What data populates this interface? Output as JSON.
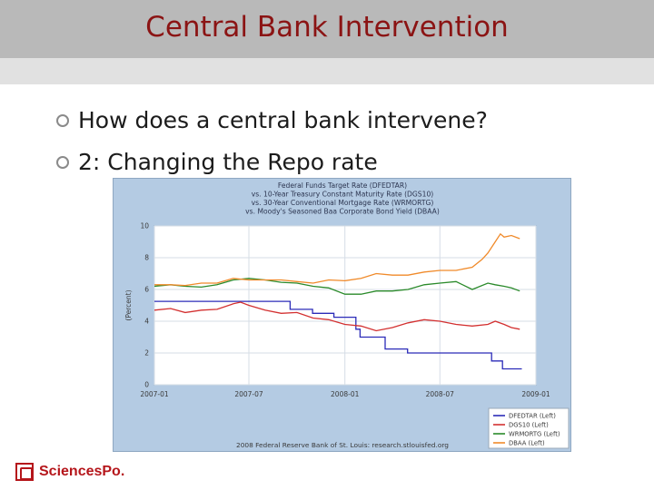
{
  "slide": {
    "title": "Central Bank Intervention",
    "bullets": [
      "How does a central bank intervene?",
      "2: Changing the Repo rate"
    ],
    "logo_text": "SciencesPo."
  },
  "colors": {
    "title": "#8b1414",
    "header_bg": "#b9b9b9",
    "band_bg": "#e1e1e1",
    "chart_bg": "#b4cbe3",
    "plot_bg": "#ffffff",
    "brand": "#b5161b"
  },
  "chart_data": {
    "type": "line",
    "title_lines": [
      "Federal Funds Target Rate (DFEDTAR)",
      "vs.  10-Year Treasury Constant Maturity Rate (DGS10)",
      "vs.  30-Year Conventional Mortgage Rate (WRMORTG)",
      "vs.  Moody's Seasoned Baa Corporate Bond Yield (DBAA)"
    ],
    "ylabel": "(Percent)",
    "ylim": [
      0,
      10
    ],
    "y_ticks": [
      "0",
      "2",
      "4",
      "6",
      "8",
      "10"
    ],
    "xlim": [
      "2007-01",
      "2009-01"
    ],
    "x_ticks": [
      "2007-01",
      "2007-07",
      "2008-01",
      "2008-07",
      "2009-01"
    ],
    "grid": true,
    "legend_position": "bottom-right",
    "footer": "2008 Federal Reserve Bank of St. Louis: research.stlouisfed.org",
    "series": [
      {
        "name": "DFEDTAR (Left)",
        "color": "#2b2bb8",
        "step": true,
        "points": [
          [
            "2007-01-01",
            5.25
          ],
          [
            "2007-09-18",
            4.75
          ],
          [
            "2007-10-31",
            4.5
          ],
          [
            "2007-12-11",
            4.25
          ],
          [
            "2008-01-22",
            3.5
          ],
          [
            "2008-01-30",
            3.0
          ],
          [
            "2008-03-18",
            2.25
          ],
          [
            "2008-04-30",
            2.0
          ],
          [
            "2008-10-08",
            1.5
          ],
          [
            "2008-10-29",
            1.0
          ],
          [
            "2008-12-05",
            1.0
          ]
        ]
      },
      {
        "name": "DGS10 (Left)",
        "color": "#d33030",
        "step": false,
        "points": [
          [
            "2007-01-01",
            4.7
          ],
          [
            "2007-02-01",
            4.8
          ],
          [
            "2007-03-01",
            4.55
          ],
          [
            "2007-04-01",
            4.7
          ],
          [
            "2007-05-01",
            4.75
          ],
          [
            "2007-06-01",
            5.1
          ],
          [
            "2007-06-15",
            5.2
          ],
          [
            "2007-07-01",
            5.0
          ],
          [
            "2007-08-01",
            4.7
          ],
          [
            "2007-09-01",
            4.5
          ],
          [
            "2007-10-01",
            4.55
          ],
          [
            "2007-11-01",
            4.2
          ],
          [
            "2007-12-01",
            4.1
          ],
          [
            "2008-01-01",
            3.8
          ],
          [
            "2008-02-01",
            3.7
          ],
          [
            "2008-03-01",
            3.4
          ],
          [
            "2008-04-01",
            3.6
          ],
          [
            "2008-05-01",
            3.9
          ],
          [
            "2008-06-01",
            4.1
          ],
          [
            "2008-07-01",
            4.0
          ],
          [
            "2008-08-01",
            3.8
          ],
          [
            "2008-09-01",
            3.7
          ],
          [
            "2008-10-01",
            3.8
          ],
          [
            "2008-10-15",
            4.0
          ],
          [
            "2008-11-01",
            3.8
          ],
          [
            "2008-11-15",
            3.6
          ],
          [
            "2008-12-01",
            3.5
          ]
        ]
      },
      {
        "name": "WRMORTG (Left)",
        "color": "#2a8a2a",
        "step": false,
        "points": [
          [
            "2007-01-01",
            6.2
          ],
          [
            "2007-02-01",
            6.3
          ],
          [
            "2007-03-01",
            6.2
          ],
          [
            "2007-04-01",
            6.15
          ],
          [
            "2007-05-01",
            6.3
          ],
          [
            "2007-06-01",
            6.6
          ],
          [
            "2007-07-01",
            6.7
          ],
          [
            "2007-08-01",
            6.6
          ],
          [
            "2007-09-01",
            6.45
          ],
          [
            "2007-10-01",
            6.4
          ],
          [
            "2007-11-01",
            6.2
          ],
          [
            "2007-12-01",
            6.1
          ],
          [
            "2008-01-01",
            5.7
          ],
          [
            "2008-02-01",
            5.7
          ],
          [
            "2008-03-01",
            5.9
          ],
          [
            "2008-04-01",
            5.9
          ],
          [
            "2008-05-01",
            6.0
          ],
          [
            "2008-06-01",
            6.3
          ],
          [
            "2008-07-01",
            6.4
          ],
          [
            "2008-08-01",
            6.5
          ],
          [
            "2008-09-01",
            6.0
          ],
          [
            "2008-10-01",
            6.4
          ],
          [
            "2008-10-15",
            6.3
          ],
          [
            "2008-11-01",
            6.2
          ],
          [
            "2008-11-15",
            6.1
          ],
          [
            "2008-12-01",
            5.9
          ]
        ]
      },
      {
        "name": "DBAA (Left)",
        "color": "#f08a2a",
        "step": false,
        "points": [
          [
            "2007-01-01",
            6.3
          ],
          [
            "2007-02-01",
            6.3
          ],
          [
            "2007-03-01",
            6.25
          ],
          [
            "2007-04-01",
            6.4
          ],
          [
            "2007-05-01",
            6.4
          ],
          [
            "2007-06-01",
            6.7
          ],
          [
            "2007-07-01",
            6.6
          ],
          [
            "2007-08-01",
            6.6
          ],
          [
            "2007-09-01",
            6.6
          ],
          [
            "2007-10-01",
            6.5
          ],
          [
            "2007-11-01",
            6.4
          ],
          [
            "2007-12-01",
            6.6
          ],
          [
            "2008-01-01",
            6.55
          ],
          [
            "2008-02-01",
            6.7
          ],
          [
            "2008-03-01",
            7.0
          ],
          [
            "2008-04-01",
            6.9
          ],
          [
            "2008-05-01",
            6.9
          ],
          [
            "2008-06-01",
            7.1
          ],
          [
            "2008-07-01",
            7.2
          ],
          [
            "2008-08-01",
            7.2
          ],
          [
            "2008-09-01",
            7.4
          ],
          [
            "2008-09-20",
            7.9
          ],
          [
            "2008-10-01",
            8.3
          ],
          [
            "2008-10-15",
            9.0
          ],
          [
            "2008-10-25",
            9.5
          ],
          [
            "2008-11-01",
            9.3
          ],
          [
            "2008-11-15",
            9.4
          ],
          [
            "2008-12-01",
            9.2
          ]
        ]
      }
    ]
  }
}
